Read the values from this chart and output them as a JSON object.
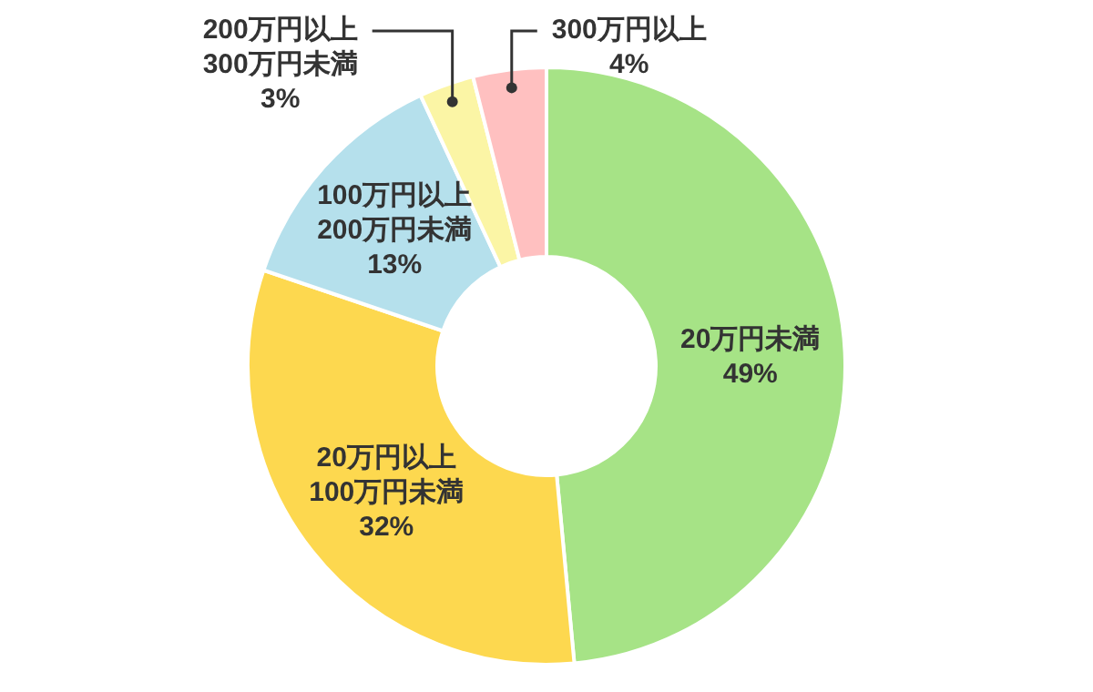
{
  "chart_data": {
    "type": "donut",
    "categories": [
      "20万円未満",
      "20万円以上100万円未満",
      "100万円以上200万円未満",
      "200万円以上300万円未満",
      "300万円以上"
    ],
    "values": [
      49,
      32,
      13,
      3,
      4
    ],
    "value_labels": [
      "49%",
      "32%",
      "13%",
      "3%",
      "4%"
    ],
    "colors": [
      "#a6e386",
      "#fdd84f",
      "#b5e0ec",
      "#fbf5a5",
      "#ffc0c0"
    ]
  }
}
